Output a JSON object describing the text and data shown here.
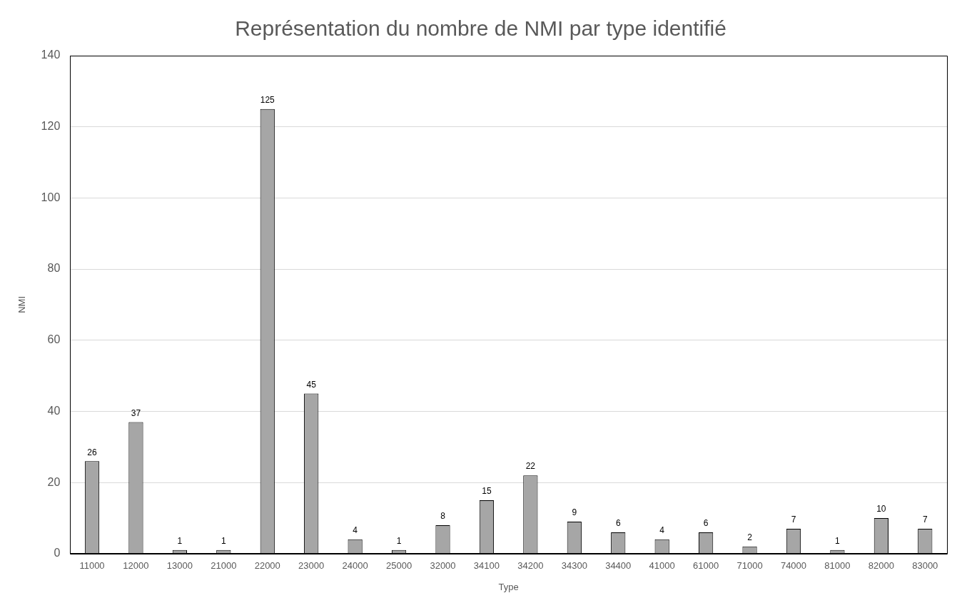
{
  "chart_data": {
    "type": "bar",
    "title": "Représentation du nombre de NMI par type identifié",
    "xlabel": "Type",
    "ylabel": "NMI",
    "categories": [
      "11000",
      "12000",
      "13000",
      "21000",
      "22000",
      "23000",
      "24000",
      "25000",
      "32000",
      "34100",
      "34200",
      "34300",
      "34400",
      "41000",
      "61000",
      "71000",
      "74000",
      "81000",
      "82000",
      "83000"
    ],
    "values": [
      26,
      37,
      1,
      1,
      125,
      45,
      4,
      1,
      8,
      15,
      22,
      9,
      6,
      4,
      6,
      2,
      7,
      1,
      10,
      7
    ],
    "color": "#a6a6a6",
    "ylim": [
      0,
      140
    ],
    "yticks": [
      0,
      20,
      40,
      60,
      80,
      100,
      120,
      140
    ],
    "grid": "y",
    "legend": false,
    "data_labels": true
  }
}
